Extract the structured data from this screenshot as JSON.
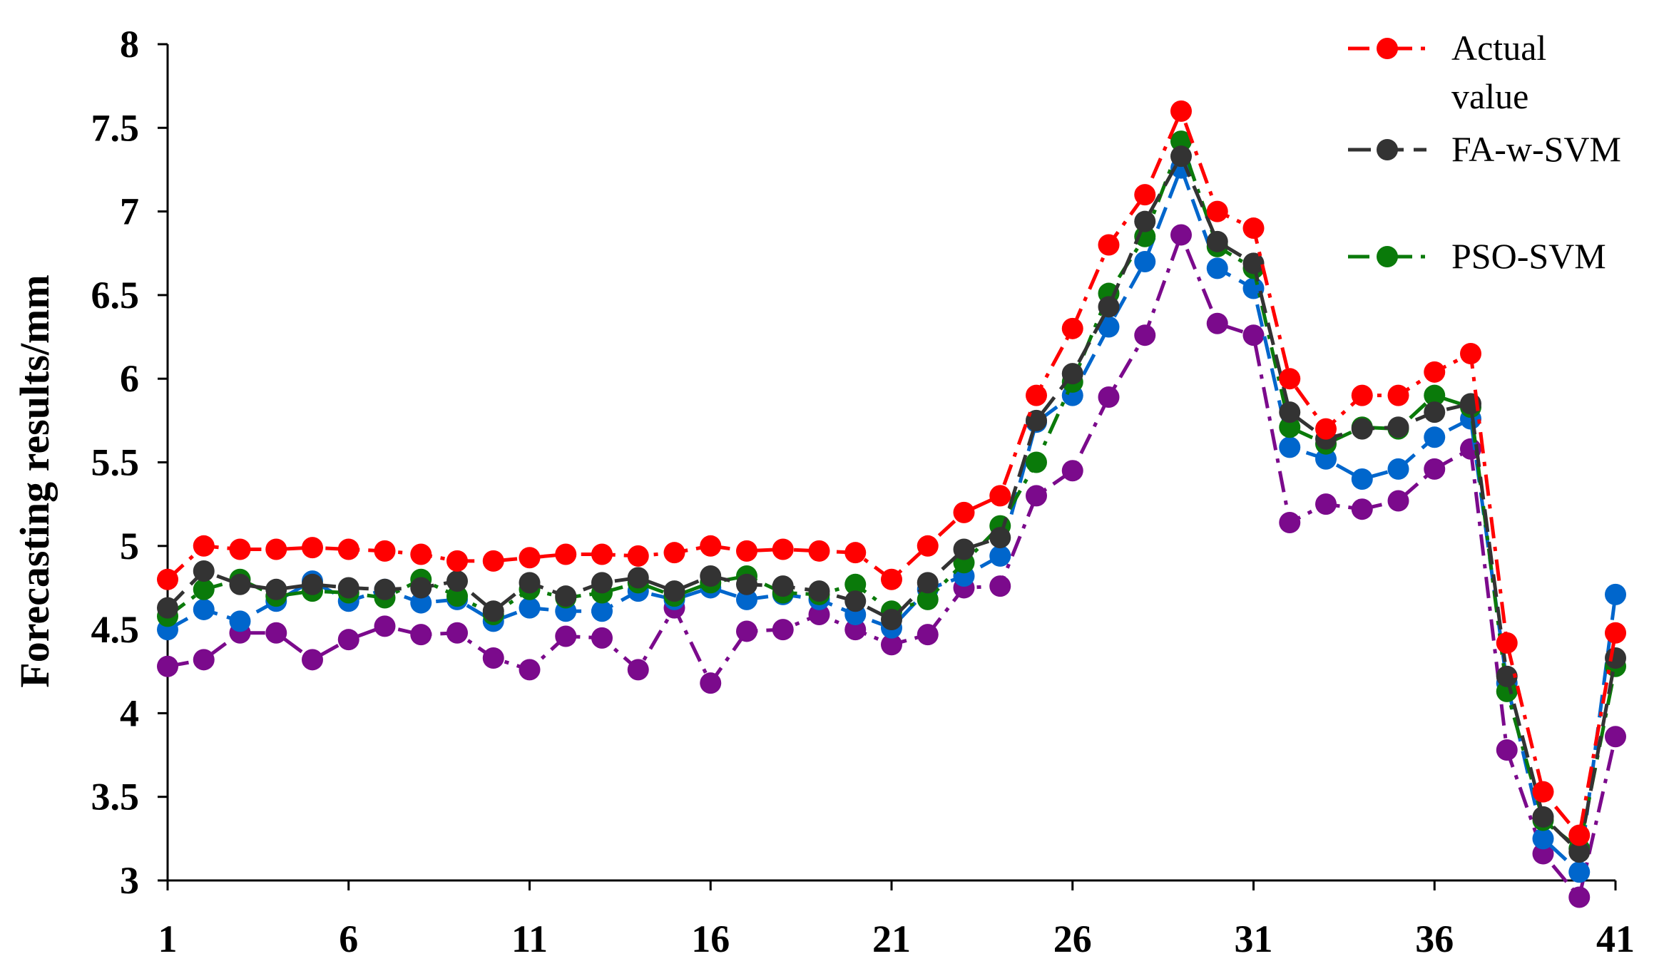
{
  "chart_data": {
    "type": "line",
    "title": "",
    "xlabel": "",
    "ylabel": "Forecasting results/mm",
    "xlim": [
      1,
      41
    ],
    "ylim": [
      3,
      8
    ],
    "x_ticks": [
      "1",
      "6",
      "11",
      "16",
      "21",
      "26",
      "31",
      "36",
      "41"
    ],
    "y_ticks": [
      "3",
      "3.5",
      "4",
      "4.5",
      "5",
      "5.5",
      "6",
      "6.5",
      "7",
      "7.5",
      "8"
    ],
    "grid": false,
    "legend_position": "top-right",
    "x": [
      1,
      2,
      3,
      4,
      5,
      6,
      7,
      8,
      9,
      10,
      11,
      12,
      13,
      14,
      15,
      16,
      17,
      18,
      19,
      20,
      21,
      22,
      23,
      24,
      25,
      26,
      27,
      28,
      29,
      30,
      31,
      32,
      33,
      34,
      35,
      36,
      37,
      38,
      39,
      40,
      41
    ],
    "series": [
      {
        "name": "",
        "color": "#7b0a8c",
        "dash": "dashdot",
        "values": [
          4.28,
          4.32,
          4.48,
          4.48,
          4.32,
          4.44,
          4.52,
          4.47,
          4.48,
          4.33,
          4.26,
          4.46,
          4.45,
          4.26,
          4.63,
          4.18,
          4.49,
          4.5,
          4.59,
          4.5,
          4.41,
          4.47,
          4.75,
          4.76,
          5.3,
          5.45,
          5.89,
          6.26,
          6.86,
          6.33,
          6.26,
          5.14,
          5.25,
          5.22,
          5.27,
          5.46,
          5.58,
          3.78,
          3.16,
          2.9,
          3.86
        ]
      },
      {
        "name": "",
        "color": "#0066cc",
        "dash": "dash",
        "values": [
          4.5,
          4.62,
          4.55,
          4.67,
          4.79,
          4.67,
          4.74,
          4.66,
          4.68,
          4.55,
          4.63,
          4.61,
          4.61,
          4.73,
          4.68,
          4.75,
          4.68,
          4.71,
          4.68,
          4.59,
          4.51,
          4.74,
          4.82,
          4.94,
          5.74,
          5.9,
          6.31,
          6.7,
          7.26,
          6.66,
          6.54,
          5.59,
          5.52,
          5.4,
          5.46,
          5.65,
          5.76,
          4.18,
          3.25,
          3.05,
          4.71
        ]
      },
      {
        "name": "PSO-SVM",
        "color": "#0a7a0a",
        "dash": "dashdot",
        "values": [
          4.58,
          4.74,
          4.8,
          4.7,
          4.73,
          4.72,
          4.69,
          4.8,
          4.7,
          4.59,
          4.74,
          4.69,
          4.72,
          4.78,
          4.7,
          4.78,
          4.82,
          4.72,
          4.71,
          4.77,
          4.61,
          4.68,
          4.9,
          5.12,
          5.5,
          5.98,
          6.51,
          6.85,
          7.42,
          6.79,
          6.66,
          5.71,
          5.61,
          5.71,
          5.7,
          5.9,
          5.83,
          4.13,
          3.36,
          3.19,
          4.28
        ]
      },
      {
        "name": "FA-w-SVM",
        "color": "#333333",
        "dash": "dash",
        "values": [
          4.63,
          4.85,
          4.77,
          4.74,
          4.77,
          4.75,
          4.74,
          4.75,
          4.79,
          4.61,
          4.78,
          4.7,
          4.78,
          4.81,
          4.73,
          4.82,
          4.77,
          4.76,
          4.73,
          4.67,
          4.56,
          4.78,
          4.98,
          5.05,
          5.75,
          6.03,
          6.43,
          6.94,
          7.33,
          6.82,
          6.69,
          5.8,
          5.64,
          5.7,
          5.71,
          5.8,
          5.85,
          4.22,
          3.38,
          3.17,
          4.33
        ]
      },
      {
        "name": "Actual value",
        "color": "#ff0000",
        "dash": "dashdot",
        "values": [
          4.8,
          5.0,
          4.98,
          4.98,
          4.99,
          4.98,
          4.97,
          4.95,
          4.91,
          4.91,
          4.93,
          4.95,
          4.95,
          4.94,
          4.96,
          5.0,
          4.97,
          4.98,
          4.97,
          4.96,
          4.8,
          5.0,
          5.2,
          5.3,
          5.9,
          6.3,
          6.8,
          7.1,
          7.6,
          7.0,
          6.9,
          6.0,
          5.7,
          5.9,
          5.9,
          6.04,
          6.15,
          4.42,
          3.53,
          3.27,
          4.48
        ]
      }
    ],
    "legend": [
      {
        "line1": "Actual",
        "line2": "value",
        "color": "#ff0000",
        "dash": "dashdot"
      },
      {
        "line1": "FA-w-SVM",
        "line2": "",
        "color": "#333333",
        "dash": "dash"
      },
      {
        "line1": "PSO-SVM",
        "line2": "",
        "color": "#0a7a0a",
        "dash": "dashdot"
      }
    ]
  }
}
